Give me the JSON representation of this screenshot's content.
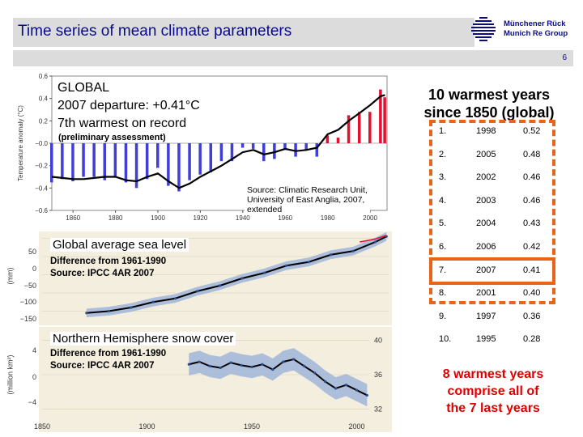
{
  "header": {
    "title": "Time series of mean climate parameters",
    "logo_line1": "Münchener Rück",
    "logo_line2": "Munich Re Group",
    "page_number": "6"
  },
  "global_panel": {
    "title": "GLOBAL",
    "line2": "2007 departure: +0.41°C",
    "line3": "7th warmest on record",
    "note": "(preliminary assessment)",
    "source_line1": "Source: Climatic Research Unit,",
    "source_line2": "University of East Anglia, 2007,",
    "source_line3": "extended",
    "ylabel": "Temperature anomaly (°C)",
    "yticks": [
      "0.6",
      "0.4",
      "0.2",
      "−0.0",
      "−0.2",
      "−0.4",
      "−0.6"
    ],
    "xticks": [
      "1860",
      "1880",
      "1900",
      "1920",
      "1940",
      "1960",
      "1980",
      "2000"
    ]
  },
  "sea_panel": {
    "title": "Global average sea level",
    "line2": "Difference from 1961-1990",
    "line3": "Source: IPCC 4AR 2007",
    "ylabel": "(mm)",
    "yticks": [
      "50",
      "0",
      "−50",
      "−100",
      "−150"
    ]
  },
  "snow_panel": {
    "title": "Northern Hemisphere snow cover",
    "line2": "Difference from 1961-1990",
    "line3": "Source: IPCC 4AR 2007",
    "ylabel": "(million km²)",
    "yticks_left": [
      "4",
      "0",
      "−4"
    ],
    "yticks_right": [
      "40",
      "36",
      "32"
    ],
    "xticks": [
      "1850",
      "1900",
      "1950",
      "2000"
    ]
  },
  "warmest": {
    "title_line1": "10 warmest years",
    "title_line2": "since 1850 (global)",
    "rows": [
      {
        "rank": "1.",
        "year": "1998",
        "anomaly": "0.52"
      },
      {
        "rank": "2.",
        "year": "2005",
        "anomaly": "0.48"
      },
      {
        "rank": "3.",
        "year": "2002",
        "anomaly": "0.46"
      },
      {
        "rank": "4.",
        "year": "2003",
        "anomaly": "0.46"
      },
      {
        "rank": "5.",
        "year": "2004",
        "anomaly": "0.43"
      },
      {
        "rank": "6.",
        "year": "2006",
        "anomaly": "0.42"
      },
      {
        "rank": "7.",
        "year": "2007",
        "anomaly": "0.41"
      },
      {
        "rank": "8.",
        "year": "2001",
        "anomaly": "0.40"
      },
      {
        "rank": "9.",
        "year": "1997",
        "anomaly": "0.36"
      },
      {
        "rank": "10.",
        "year": "1995",
        "anomaly": "0.28"
      }
    ],
    "highlighted_year": "2007",
    "conclusion_line1": "8 warmest years",
    "conclusion_line2": "comprise all of",
    "conclusion_line3": "the 7 last years"
  },
  "colors": {
    "brand_blue": "#0a0a8a",
    "highlight_orange": "#e8641a",
    "conclusion_red": "#e00000",
    "bar_blue": "#3f3fd8",
    "bar_red": "#e0102e",
    "band_blue": "#9ab2d8"
  },
  "chart_data": [
    {
      "type": "bar",
      "x": [
        1850,
        1855,
        1860,
        1865,
        1870,
        1875,
        1880,
        1885,
        1890,
        1895,
        1900,
        1905,
        1910,
        1915,
        1920,
        1925,
        1930,
        1935,
        1940,
        1945,
        1950,
        1955,
        1960,
        1965,
        1970,
        1975,
        1980,
        1985,
        1990,
        1995,
        2000,
        2005,
        2007
      ],
      "values": [
        -0.35,
        -0.32,
        -0.34,
        -0.3,
        -0.3,
        -0.33,
        -0.3,
        -0.35,
        -0.4,
        -0.32,
        -0.22,
        -0.38,
        -0.43,
        -0.33,
        -0.28,
        -0.26,
        -0.16,
        -0.16,
        -0.04,
        -0.05,
        -0.16,
        -0.14,
        -0.06,
        -0.12,
        -0.06,
        -0.12,
        0.07,
        0.05,
        0.25,
        0.28,
        0.28,
        0.48,
        0.41
      ],
      "smoothed": [
        -0.3,
        -0.31,
        -0.32,
        -0.32,
        -0.31,
        -0.3,
        -0.3,
        -0.33,
        -0.34,
        -0.3,
        -0.27,
        -0.34,
        -0.4,
        -0.36,
        -0.3,
        -0.25,
        -0.2,
        -0.14,
        -0.08,
        -0.06,
        -0.1,
        -0.08,
        -0.05,
        -0.07,
        -0.06,
        -0.04,
        0.08,
        0.12,
        0.2,
        0.27,
        0.34,
        0.42,
        0.43
      ],
      "ylim": [
        -0.6,
        0.6
      ],
      "xlim": [
        1850,
        2008
      ],
      "ylabel": "Temperature anomaly (°C)"
    },
    {
      "type": "line",
      "x": [
        1870,
        1880,
        1890,
        1900,
        1910,
        1920,
        1930,
        1940,
        1950,
        1960,
        1970,
        1980,
        1990,
        2000,
        2005
      ],
      "values": [
        -155,
        -150,
        -140,
        -125,
        -115,
        -95,
        -80,
        -60,
        -45,
        -25,
        -15,
        5,
        15,
        40,
        55
      ],
      "ylim": [
        -180,
        60
      ],
      "xlim": [
        1850,
        2006
      ],
      "ylabel": "(mm)"
    },
    {
      "type": "line",
      "x": [
        1920,
        1925,
        1930,
        1935,
        1940,
        1945,
        1950,
        1955,
        1960,
        1965,
        1970,
        1975,
        1980,
        1985,
        1990,
        1995,
        2000,
        2005
      ],
      "values": [
        1.2,
        1.5,
        1.0,
        0.8,
        1.4,
        1.1,
        0.9,
        1.2,
        0.6,
        1.5,
        1.8,
        1.0,
        0.2,
        -0.8,
        -1.6,
        -1.2,
        -1.8,
        -2.4
      ],
      "ylim": [
        -5,
        5
      ],
      "xlim": [
        1850,
        2006
      ],
      "ylabel": "(million km²)"
    }
  ]
}
